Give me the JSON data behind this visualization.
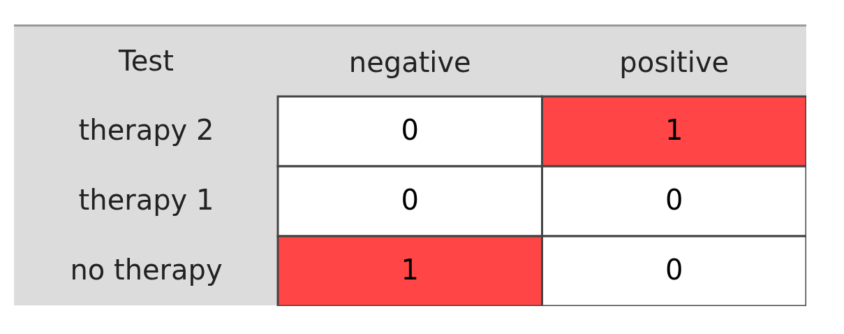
{
  "chart_data": {
    "type": "heatmap",
    "ylabel": "Test",
    "categories": [
      "negative",
      "positive"
    ],
    "y_categories": [
      "therapy 2",
      "therapy 1",
      "no therapy"
    ],
    "cells": [
      [
        0,
        1
      ],
      [
        0,
        0
      ],
      [
        1,
        0
      ]
    ],
    "colors": [
      [
        "#ffffff",
        "#ff4545"
      ],
      [
        "#ffffff",
        "#ffffff"
      ],
      [
        "#ff4545",
        "#ffffff"
      ]
    ],
    "data_labels": true
  }
}
